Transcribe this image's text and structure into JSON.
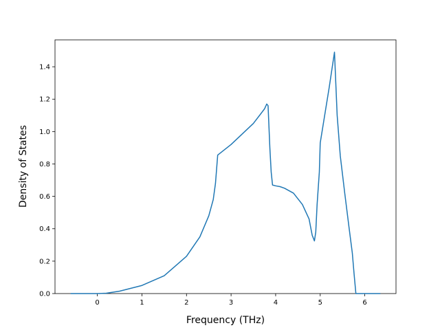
{
  "chart_data": {
    "type": "line",
    "x_label": "Frequency (THz)",
    "y_label": "Density of States",
    "xlim": [
      -0.95,
      6.7
    ],
    "ylim": [
      0,
      1.566
    ],
    "xticks": [
      0,
      1,
      2,
      3,
      4,
      5,
      6
    ],
    "yticks": [
      {
        "value": 0,
        "label": "0.0"
      },
      0.2,
      0.4,
      0.6,
      0.8,
      {
        "value": 1,
        "label": "1.0"
      },
      1.2,
      1.4
    ],
    "grid": false,
    "series": [
      {
        "color": "#1f77b4",
        "x": [
          -0.6,
          0,
          0.2,
          0.5,
          1.0,
          1.5,
          2.0,
          2.3,
          2.5,
          2.6,
          2.65,
          2.7,
          3.0,
          3.5,
          3.75,
          3.8,
          3.83,
          3.87,
          3.9,
          3.93,
          4.0,
          4.1,
          4.2,
          4.4,
          4.6,
          4.75,
          4.82,
          4.87,
          4.9,
          4.93,
          4.98,
          5.0,
          5.1,
          5.2,
          5.32,
          5.38,
          5.45,
          5.55,
          5.65,
          5.72,
          5.76,
          5.8,
          6.35
        ],
        "values": [
          0,
          0,
          0.002,
          0.015,
          0.05,
          0.11,
          0.23,
          0.35,
          0.48,
          0.58,
          0.68,
          0.855,
          0.92,
          1.05,
          1.14,
          1.17,
          1.16,
          0.9,
          0.75,
          0.67,
          0.665,
          0.66,
          0.65,
          0.62,
          0.55,
          0.46,
          0.36,
          0.325,
          0.38,
          0.55,
          0.75,
          0.93,
          1.1,
          1.27,
          1.49,
          1.1,
          0.85,
          0.62,
          0.4,
          0.25,
          0.12,
          0.0,
          0
        ]
      }
    ]
  }
}
